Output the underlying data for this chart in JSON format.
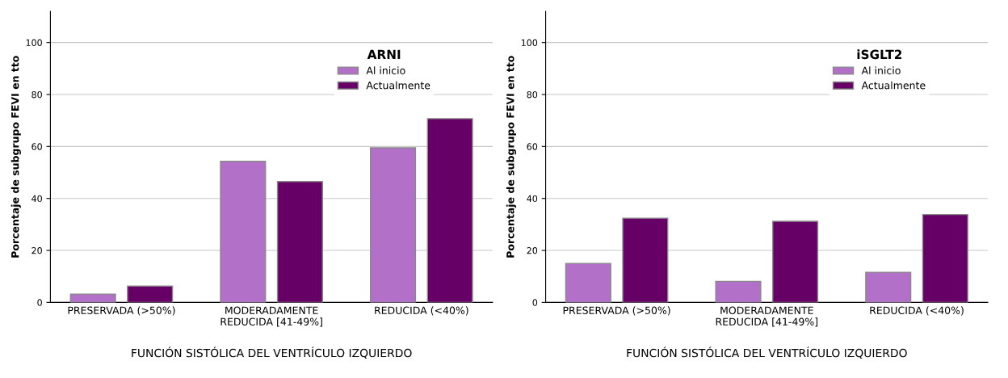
{
  "chart_data": [
    {
      "type": "bar",
      "xlabel": "FUNCIÓN SISTÓLICA DEL VENTRÍCULO IZQUIERDO",
      "ylabel": "Porcentaje de subgrupo FEVI en tto",
      "legend_title": "ARNI",
      "categories": [
        "PRESERVADA (>50%)",
        "MODERADAMENTE\nREDUCIDA [41-49%]",
        "REDUCIDA (<40%)"
      ],
      "series": [
        {
          "name": "Al inicio",
          "color": "#b370c8",
          "values": [
            3.2,
            54.3,
            59.5
          ]
        },
        {
          "name": "Actualmente",
          "color": "#660066",
          "values": [
            6.3,
            46.5,
            70.7
          ]
        }
      ],
      "ylim": [
        0,
        112
      ],
      "yticks": [
        0,
        20,
        40,
        60,
        80,
        100
      ],
      "grid": "y",
      "legend": "top right"
    },
    {
      "type": "bar",
      "xlabel": "FUNCIÓN SISTÓLICA DEL VENTRÍCULO IZQUIERDO",
      "ylabel": "Porcentaje de subgrupo FEVI en tto",
      "legend_title": "iSGLT2",
      "categories": [
        "PRESERVADA (>50%)",
        "MODERADAMENTE\nREDUCIDA [41-49%]",
        "REDUCIDA (<40%)"
      ],
      "series": [
        {
          "name": "Al inicio",
          "color": "#b370c8",
          "values": [
            15.0,
            8.1,
            11.6
          ]
        },
        {
          "name": "Actualmente",
          "color": "#660066",
          "values": [
            32.4,
            31.2,
            33.8
          ]
        }
      ],
      "ylim": [
        0,
        112
      ],
      "yticks": [
        0,
        20,
        40,
        60,
        80,
        100
      ],
      "grid": "y",
      "legend": "top right"
    }
  ]
}
